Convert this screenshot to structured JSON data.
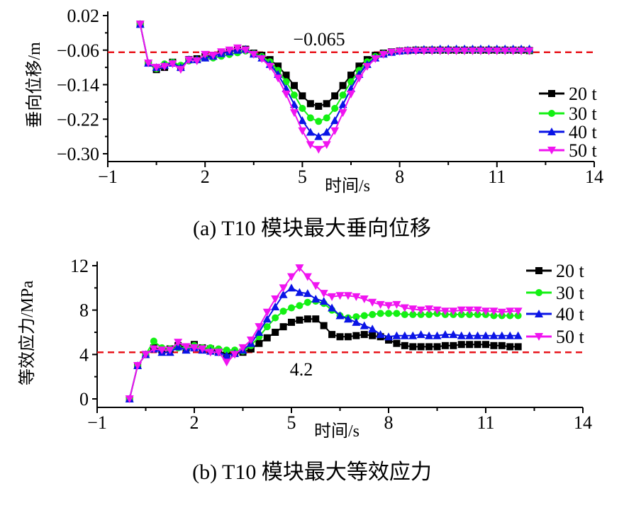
{
  "chart_data": [
    {
      "type": "line",
      "caption": "(a) T10 模块最大垂向位移",
      "xlabel": "时间/s",
      "ylabel": "垂向位移/m",
      "xlim": [
        -1,
        14
      ],
      "ylim": [
        -0.3,
        0.02
      ],
      "xticks": [
        -1,
        2,
        5,
        8,
        11,
        14
      ],
      "xtick_labels": [
        "−1",
        "2",
        "5",
        "8",
        "11",
        "14"
      ],
      "yticks": [
        0.02,
        -0.06,
        -0.14,
        -0.22,
        -0.3
      ],
      "ytick_labels": [
        "0.02",
        "−0.06",
        "−0.14",
        "−0.22",
        "−0.30"
      ],
      "reference_line": {
        "value": -0.065,
        "label": "−0.065",
        "color": "#e8141b"
      },
      "legend_position": "right",
      "x": [
        0,
        0.25,
        0.5,
        0.75,
        1,
        1.25,
        1.5,
        1.75,
        2,
        2.25,
        2.5,
        2.75,
        3,
        3.25,
        3.5,
        3.75,
        4,
        4.25,
        4.5,
        4.75,
        5,
        5.25,
        5.5,
        5.75,
        6,
        6.25,
        6.5,
        6.75,
        7,
        7.25,
        7.5,
        7.75,
        8,
        8.25,
        8.5,
        8.75,
        9,
        9.25,
        9.5,
        9.75,
        10,
        10.25,
        10.5,
        10.75,
        11,
        11.25,
        11.5,
        11.75,
        12
      ],
      "series": [
        {
          "name": "20 t",
          "color": "#000000",
          "marker": "square",
          "values": [
            0.0,
            -0.09,
            -0.105,
            -0.1,
            -0.088,
            -0.1,
            -0.082,
            -0.08,
            -0.075,
            -0.072,
            -0.068,
            -0.064,
            -0.06,
            -0.058,
            -0.067,
            -0.072,
            -0.082,
            -0.097,
            -0.118,
            -0.142,
            -0.166,
            -0.184,
            -0.19,
            -0.184,
            -0.166,
            -0.142,
            -0.118,
            -0.097,
            -0.082,
            -0.072,
            -0.067,
            -0.064,
            -0.062,
            -0.061,
            -0.06,
            -0.06,
            -0.06,
            -0.06,
            -0.06,
            -0.06,
            -0.06,
            -0.06,
            -0.06,
            -0.06,
            -0.06,
            -0.06,
            -0.06,
            -0.06,
            -0.061
          ]
        },
        {
          "name": "30 t",
          "color": "#14f014",
          "marker": "circle",
          "values": [
            0.0,
            -0.09,
            -0.103,
            -0.092,
            -0.088,
            -0.095,
            -0.085,
            -0.083,
            -0.078,
            -0.078,
            -0.074,
            -0.07,
            -0.066,
            -0.062,
            -0.068,
            -0.075,
            -0.087,
            -0.107,
            -0.133,
            -0.164,
            -0.195,
            -0.217,
            -0.225,
            -0.217,
            -0.195,
            -0.164,
            -0.133,
            -0.107,
            -0.087,
            -0.075,
            -0.068,
            -0.064,
            -0.062,
            -0.061,
            -0.06,
            -0.06,
            -0.06,
            -0.06,
            -0.06,
            -0.06,
            -0.06,
            -0.06,
            -0.06,
            -0.06,
            -0.06,
            -0.06,
            -0.06,
            -0.06,
            -0.061
          ]
        },
        {
          "name": "40 t",
          "color": "#0a14e6",
          "marker": "triangle-up",
          "values": [
            0.0,
            -0.09,
            -0.1,
            -0.095,
            -0.09,
            -0.1,
            -0.082,
            -0.082,
            -0.078,
            -0.074,
            -0.068,
            -0.064,
            -0.06,
            -0.058,
            -0.069,
            -0.078,
            -0.093,
            -0.116,
            -0.149,
            -0.186,
            -0.223,
            -0.25,
            -0.26,
            -0.25,
            -0.223,
            -0.186,
            -0.149,
            -0.116,
            -0.093,
            -0.078,
            -0.069,
            -0.065,
            -0.062,
            -0.06,
            -0.059,
            -0.058,
            -0.058,
            -0.057,
            -0.057,
            -0.057,
            -0.057,
            -0.057,
            -0.057,
            -0.057,
            -0.057,
            -0.057,
            -0.057,
            -0.057,
            -0.057
          ]
        },
        {
          "name": "50 t",
          "color": "#f014f0",
          "marker": "triangle-down",
          "values": [
            0.0,
            -0.09,
            -0.1,
            -0.098,
            -0.092,
            -0.105,
            -0.083,
            -0.085,
            -0.07,
            -0.072,
            -0.064,
            -0.06,
            -0.055,
            -0.06,
            -0.07,
            -0.08,
            -0.098,
            -0.125,
            -0.162,
            -0.205,
            -0.247,
            -0.279,
            -0.29,
            -0.279,
            -0.247,
            -0.205,
            -0.162,
            -0.125,
            -0.098,
            -0.08,
            -0.07,
            -0.065,
            -0.063,
            -0.062,
            -0.062,
            -0.062,
            -0.062,
            -0.062,
            -0.062,
            -0.062,
            -0.062,
            -0.062,
            -0.062,
            -0.062,
            -0.062,
            -0.062,
            -0.062,
            -0.062,
            -0.062
          ]
        }
      ]
    },
    {
      "type": "line",
      "caption": "(b) T10 模块最大等效应力",
      "xlabel": "时间/s",
      "ylabel": "等效应力/MPa",
      "xlim": [
        -1,
        14
      ],
      "ylim": [
        0,
        12
      ],
      "xticks": [
        -1,
        2,
        5,
        8,
        11,
        14
      ],
      "xtick_labels": [
        "−1",
        "2",
        "5",
        "8",
        "11",
        "14"
      ],
      "yticks": [
        0,
        4,
        8,
        12
      ],
      "ytick_labels": [
        "0",
        "4",
        "8",
        "12"
      ],
      "reference_line": {
        "value": 4.2,
        "label": "4.2",
        "color": "#e8141b"
      },
      "legend_position": "top-right",
      "x": [
        0,
        0.25,
        0.5,
        0.75,
        1,
        1.25,
        1.5,
        1.75,
        2,
        2.25,
        2.5,
        2.75,
        3,
        3.25,
        3.5,
        3.75,
        4,
        4.25,
        4.5,
        4.75,
        5,
        5.25,
        5.5,
        5.75,
        6,
        6.25,
        6.5,
        6.75,
        7,
        7.25,
        7.5,
        7.75,
        8,
        8.25,
        8.5,
        8.75,
        9,
        9.25,
        9.5,
        9.75,
        10,
        10.25,
        10.5,
        10.75,
        11,
        11.25,
        11.5,
        11.75,
        12
      ],
      "series": [
        {
          "name": "20 t",
          "color": "#000000",
          "marker": "square",
          "values": [
            0,
            3.0,
            4.0,
            4.6,
            4.4,
            4.5,
            4.8,
            4.6,
            4.9,
            4.6,
            4.5,
            4.3,
            4.0,
            4.1,
            4.2,
            4.5,
            5.0,
            5.5,
            6.0,
            6.5,
            6.9,
            7.1,
            7.2,
            7.2,
            6.6,
            5.8,
            5.6,
            5.6,
            5.7,
            5.8,
            5.7,
            5.6,
            5.3,
            5.0,
            4.8,
            4.7,
            4.7,
            4.7,
            4.7,
            4.8,
            4.8,
            4.9,
            4.9,
            4.9,
            4.9,
            4.8,
            4.8,
            4.7,
            4.7
          ]
        },
        {
          "name": "30 t",
          "color": "#14f014",
          "marker": "circle",
          "values": [
            0,
            3.0,
            4.0,
            5.2,
            4.6,
            4.5,
            4.6,
            4.6,
            4.8,
            4.6,
            4.6,
            4.5,
            4.4,
            4.4,
            4.3,
            4.8,
            5.6,
            6.5,
            7.3,
            7.9,
            8.2,
            8.4,
            8.7,
            8.8,
            8.6,
            8.0,
            7.5,
            7.3,
            7.4,
            7.5,
            7.6,
            7.7,
            7.7,
            7.7,
            7.6,
            7.6,
            7.6,
            7.6,
            7.7,
            7.6,
            7.6,
            7.6,
            7.6,
            7.6,
            7.6,
            7.5,
            7.5,
            7.5,
            7.5
          ]
        },
        {
          "name": "40 t",
          "color": "#0a14e6",
          "marker": "triangle-up",
          "values": [
            0,
            3.0,
            4.0,
            4.5,
            4.2,
            4.2,
            4.7,
            4.4,
            4.6,
            4.4,
            4.3,
            4.2,
            3.9,
            4.1,
            4.4,
            5.0,
            6.0,
            7.2,
            8.3,
            9.4,
            10.0,
            9.6,
            9.5,
            9.0,
            8.8,
            8.2,
            7.5,
            7.2,
            6.9,
            6.6,
            6.3,
            5.8,
            5.6,
            5.7,
            5.7,
            5.7,
            5.8,
            5.7,
            5.7,
            5.8,
            5.8,
            5.7,
            5.7,
            5.7,
            5.7,
            5.7,
            5.7,
            5.7,
            5.7
          ]
        },
        {
          "name": "50 t",
          "color": "#f014f0",
          "marker": "triangle-down",
          "values": [
            0,
            3.0,
            4.0,
            4.5,
            4.4,
            4.4,
            5.1,
            4.7,
            4.6,
            4.5,
            4.2,
            4.2,
            3.3,
            4.0,
            4.6,
            5.3,
            6.5,
            7.8,
            9.0,
            10.0,
            11.0,
            11.8,
            11.0,
            10.2,
            9.5,
            9.2,
            9.3,
            9.3,
            9.2,
            9.0,
            8.7,
            8.5,
            8.4,
            8.5,
            8.2,
            8.1,
            8.0,
            8.1,
            8.0,
            7.9,
            7.9,
            8.0,
            8.0,
            8.0,
            7.9,
            7.9,
            7.8,
            7.9,
            7.9
          ]
        }
      ]
    }
  ]
}
